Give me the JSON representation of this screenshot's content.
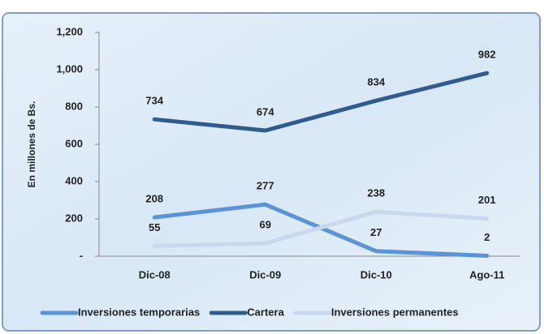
{
  "chart_data": {
    "type": "line",
    "y_label": "En millones de Bs.",
    "categories": [
      "Dic-08",
      "Dic-09",
      "Dic-10",
      "Ago-11"
    ],
    "series": [
      {
        "name": "Inversiones temporarias",
        "color": "#5a93d6",
        "values": [
          208,
          277,
          27,
          2
        ]
      },
      {
        "name": "Cartera",
        "color": "#2f5b8e",
        "values": [
          734,
          674,
          834,
          982
        ]
      },
      {
        "name": "Inversiones permanentes",
        "color": "#c9d8ec",
        "values": [
          55,
          69,
          238,
          201
        ]
      }
    ],
    "ylim": [
      0,
      1200
    ],
    "yticks": [
      {
        "value": 0,
        "label": "-"
      },
      200,
      400,
      600,
      800,
      {
        "value": 1000,
        "label": "1,000"
      },
      {
        "value": 1200,
        "label": "1,200"
      }
    ],
    "legend": "bottom"
  }
}
